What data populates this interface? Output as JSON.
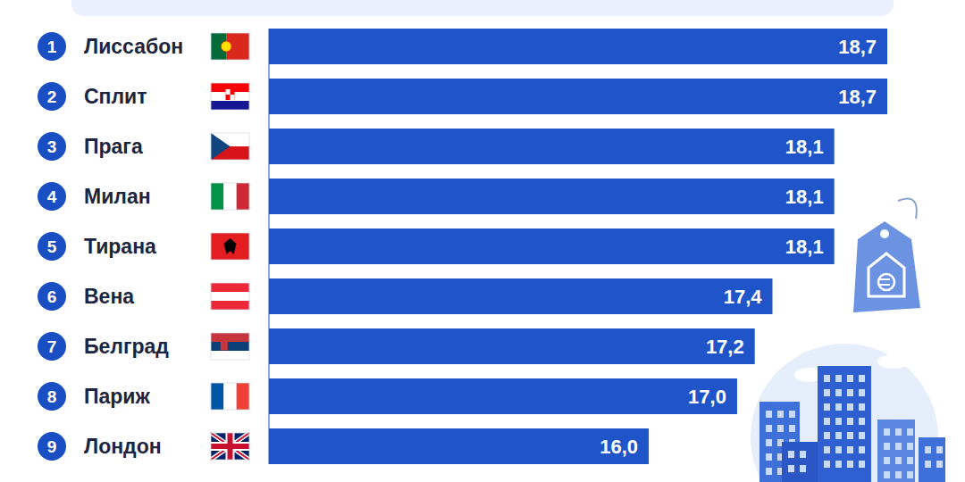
{
  "chart_data": {
    "type": "bar",
    "orientation": "horizontal",
    "categories": [
      "Лиссабон",
      "Сплит",
      "Прага",
      "Милан",
      "Тирана",
      "Вена",
      "Белград",
      "Париж",
      "Лондон"
    ],
    "ranks": [
      1,
      2,
      3,
      4,
      5,
      6,
      7,
      8,
      9
    ],
    "values": [
      18.7,
      18.7,
      18.1,
      18.1,
      18.1,
      17.4,
      17.2,
      17.0,
      16.0
    ],
    "value_labels": [
      "18,7",
      "18,7",
      "18,1",
      "18,1",
      "18,1",
      "17,4",
      "17,2",
      "17,0",
      "16,0"
    ],
    "color": "#1f55c9",
    "xlim": [
      11.7,
      18.7
    ],
    "tick_labels": false,
    "data_labels": true
  }
}
